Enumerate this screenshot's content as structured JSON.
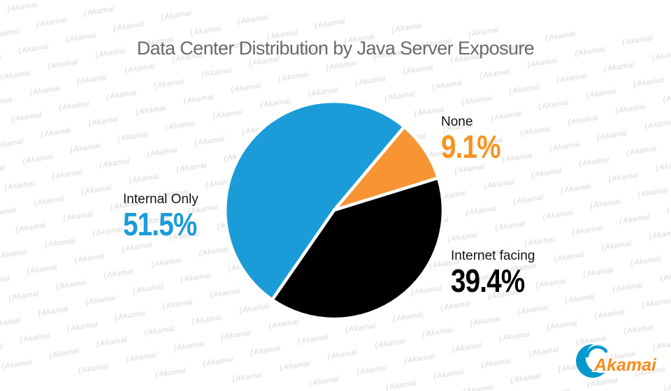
{
  "title": "Data Center Distribution by Java Server Exposure",
  "watermark": {
    "text": "Akamai"
  },
  "logo": {
    "text": "Akamai",
    "swoosh_color": "#0099CC",
    "text_color": "#F68B1E"
  },
  "style": {
    "background": "#FFFFFF",
    "title_color": "#6A6A6A",
    "label_color": "#141414",
    "watermark_color": "#E3E3E3"
  },
  "chart_data": {
    "type": "pie",
    "title": "Data Center Distribution by Java Server Exposure",
    "unit": "percent",
    "start_angle_deg": 50,
    "direction": "clockwise",
    "separator_color": "#FFFFFF",
    "legend_position": "labels-outside",
    "slices": [
      {
        "label": "None",
        "value": 9.1,
        "display": "9.1%",
        "color": "#F79433",
        "text_color": "#F7941E"
      },
      {
        "label": "Internet facing",
        "value": 39.4,
        "display": "39.4%",
        "color": "#000000",
        "text_color": "#000000"
      },
      {
        "label": "Internal Only",
        "value": 51.5,
        "display": "51.5%",
        "color": "#1B9CD8",
        "text_color": "#1B9CD8"
      }
    ]
  }
}
